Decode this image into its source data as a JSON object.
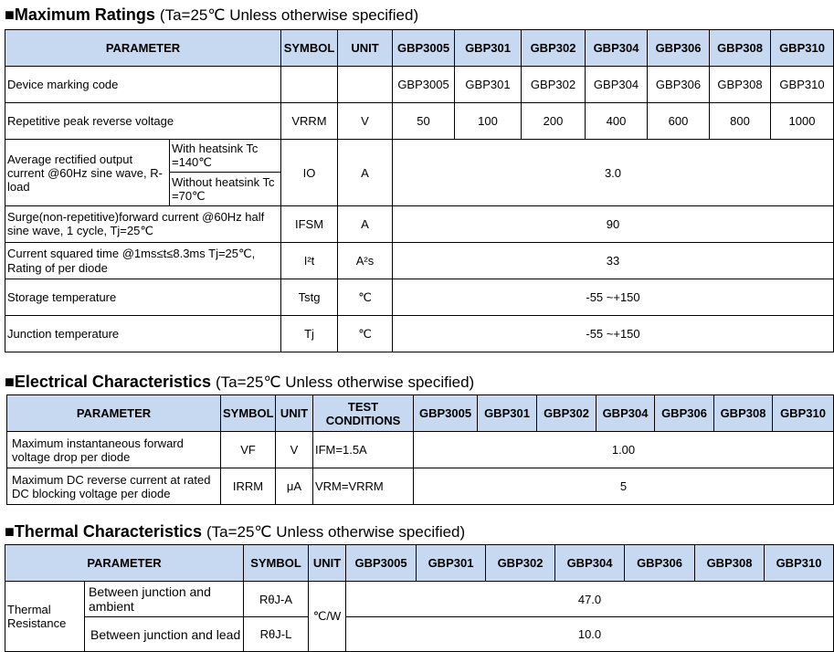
{
  "models": [
    "GBP3005",
    "GBP301",
    "GBP302",
    "GBP304",
    "GBP306",
    "GBP308",
    "GBP310"
  ],
  "max": {
    "title": "■Maximum Ratings",
    "cond": "(Ta=25℃ Unless otherwise specified)",
    "h": {
      "param": "PARAMETER",
      "symbol": "SYMBOL",
      "unit": "UNIT"
    },
    "marking": {
      "label": "Device marking code",
      "values": [
        "GBP3005",
        "GBP301",
        "GBP302",
        "GBP304",
        "GBP306",
        "GBP308",
        "GBP310"
      ]
    },
    "vrrm": {
      "label": "Repetitive peak reverse voltage",
      "symbol": "VRRM",
      "unit": "V",
      "values": [
        "50",
        "100",
        "200",
        "400",
        "600",
        "800",
        "1000"
      ]
    },
    "io": {
      "label": "Average rectified output current @60Hz sine wave, R-load",
      "sub1": "With heatsink Tc =140℃",
      "sub2": "Without heatsink Tc =70℃",
      "symbol": "IO",
      "unit": "A",
      "value": "3.0"
    },
    "ifsm": {
      "label": "Surge(non-repetitive)forward current @60Hz half sine wave, 1 cycle, Tj=25℃",
      "symbol": "IFSM",
      "unit": "A",
      "value": "90"
    },
    "i2t": {
      "label": "Current squared time @1ms≤t≤8.3ms Tj=25℃, Rating of per diode",
      "symbol": "I²t",
      "unit": "A²s",
      "value": "33"
    },
    "tstg": {
      "label": "Storage temperature",
      "symbol": "Tstg",
      "unit": "℃",
      "value": "-55 ~+150"
    },
    "tj": {
      "label": "Junction temperature",
      "symbol": "Tj",
      "unit": "℃",
      "value": "-55 ~+150"
    }
  },
  "elec": {
    "title": "■Electrical Characteristics",
    "cond": "(Ta=25℃ Unless otherwise specified)",
    "h": {
      "param": "PARAMETER",
      "symbol": "SYMBOL",
      "unit": "UNIT",
      "test": "TEST CONDITIONS"
    },
    "vf": {
      "label": "Maximum instantaneous forward voltage drop per diode",
      "symbol": "VF",
      "unit": "V",
      "test": "IFM=1.5A",
      "value": "1.00"
    },
    "irrm": {
      "label": "Maximum DC reverse current at rated DC blocking voltage per diode",
      "symbol": "IRRM",
      "unit": "μA",
      "test": "VRM=VRRM",
      "value": "5"
    }
  },
  "therm": {
    "title": "■Thermal Characteristics",
    "cond": "(Ta=25℃ Unless otherwise specified)",
    "h": {
      "param": "PARAMETER",
      "symbol": "SYMBOL",
      "unit": "UNIT"
    },
    "group": "Thermal Resistance",
    "unit": "℃/W",
    "rja": {
      "label": "Between junction and ambient",
      "symbol": "RθJ-A",
      "value": "47.0"
    },
    "rjl": {
      "label": "Between junction and lead",
      "symbol": "RθJ-L",
      "value": "10.0"
    }
  }
}
